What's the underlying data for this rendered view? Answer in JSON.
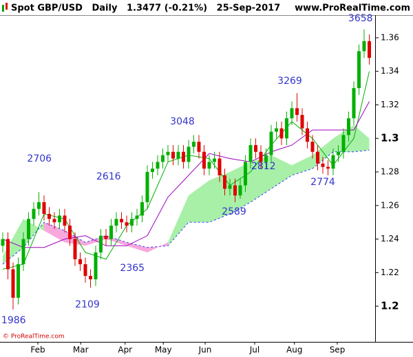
{
  "chart_data": {
    "type": "candlestick",
    "title": "Spot GBP/USD   Daily   1.3477 (-0.21%)   25-Sep-2017",
    "website": "www.ProRealTime.com",
    "copyright": "© ProRealTime.com",
    "up_color": "#00b000",
    "down_color": "#e00000",
    "xlim": [
      -0.533,
      72.133
    ],
    "ylim": [
      1.1787,
      1.3735
    ],
    "yticks": [
      1.2,
      1.22,
      1.24,
      1.26,
      1.28,
      1.3,
      1.32,
      1.34,
      1.36
    ],
    "xticks": [
      {
        "value": 6.8,
        "label": "Feb"
      },
      {
        "value": 15.1,
        "label": "Mar"
      },
      {
        "value": 23.7,
        "label": "Apr"
      },
      {
        "value": 31.1,
        "label": "May"
      },
      {
        "value": 39.2,
        "label": "Jun"
      },
      {
        "value": 48.8,
        "label": "Jul"
      },
      {
        "value": 56.5,
        "label": "Aug"
      },
      {
        "value": 64.8,
        "label": "Sep"
      }
    ],
    "grid": false,
    "candles": {
      "x": [
        0,
        1,
        2,
        3,
        4,
        5,
        6,
        7,
        8,
        9,
        10,
        11,
        12,
        13,
        14,
        15,
        16,
        17,
        18,
        19,
        20,
        21,
        22,
        23,
        24,
        25,
        26,
        27,
        28,
        29,
        30,
        31,
        32,
        33,
        34,
        35,
        36,
        37,
        38,
        39,
        40,
        41,
        42,
        43,
        44,
        45,
        46,
        47,
        48,
        49,
        50,
        51,
        52,
        53,
        54,
        55,
        56,
        57,
        58,
        59,
        60,
        61,
        62,
        63,
        64,
        65,
        66,
        67,
        68,
        69,
        70,
        71
      ],
      "open": [
        1.236,
        1.24,
        1.222,
        1.205,
        1.225,
        1.24,
        1.252,
        1.258,
        1.262,
        1.255,
        1.252,
        1.25,
        1.254,
        1.248,
        1.24,
        1.228,
        1.225,
        1.218,
        1.216,
        1.232,
        1.242,
        1.24,
        1.248,
        1.252,
        1.25,
        1.248,
        1.252,
        1.254,
        1.262,
        1.28,
        1.282,
        1.286,
        1.29,
        1.292,
        1.288,
        1.292,
        1.286,
        1.295,
        1.298,
        1.292,
        1.282,
        1.286,
        1.288,
        1.278,
        1.27,
        1.272,
        1.266,
        1.272,
        1.286,
        1.296,
        1.292,
        1.286,
        1.29,
        1.304,
        1.306,
        1.3,
        1.312,
        1.318,
        1.314,
        1.306,
        1.298,
        1.292,
        1.285,
        1.283,
        1.282,
        1.29,
        1.292,
        1.302,
        1.312,
        1.33,
        1.352,
        1.358
      ],
      "high": [
        1.244,
        1.244,
        1.226,
        1.229,
        1.244,
        1.256,
        1.262,
        1.268,
        1.266,
        1.259,
        1.256,
        1.258,
        1.258,
        1.252,
        1.244,
        1.232,
        1.229,
        1.222,
        1.236,
        1.246,
        1.246,
        1.252,
        1.256,
        1.256,
        1.254,
        1.256,
        1.258,
        1.266,
        1.284,
        1.286,
        1.29,
        1.294,
        1.296,
        1.296,
        1.296,
        1.296,
        1.299,
        1.302,
        1.302,
        1.296,
        1.29,
        1.292,
        1.292,
        1.282,
        1.276,
        1.276,
        1.276,
        1.29,
        1.3,
        1.3,
        1.296,
        1.294,
        1.308,
        1.31,
        1.31,
        1.316,
        1.322,
        1.327,
        1.318,
        1.31,
        1.302,
        1.296,
        1.289,
        1.287,
        1.294,
        1.296,
        1.306,
        1.316,
        1.334,
        1.356,
        1.365,
        1.362
      ],
      "low": [
        1.232,
        1.216,
        1.198,
        1.201,
        1.221,
        1.236,
        1.248,
        1.254,
        1.251,
        1.248,
        1.246,
        1.246,
        1.244,
        1.236,
        1.224,
        1.221,
        1.214,
        1.211,
        1.212,
        1.228,
        1.236,
        1.236,
        1.244,
        1.246,
        1.244,
        1.244,
        1.248,
        1.25,
        1.258,
        1.276,
        1.278,
        1.282,
        1.286,
        1.284,
        1.284,
        1.282,
        1.282,
        1.291,
        1.288,
        1.278,
        1.278,
        1.282,
        1.274,
        1.266,
        1.266,
        1.262,
        1.264,
        1.268,
        1.282,
        1.288,
        1.282,
        1.282,
        1.286,
        1.3,
        1.296,
        1.296,
        1.308,
        1.31,
        1.302,
        1.294,
        1.288,
        1.281,
        1.279,
        1.278,
        1.278,
        1.286,
        1.288,
        1.298,
        1.308,
        1.326,
        1.348,
        1.344
      ],
      "close": [
        1.24,
        1.222,
        1.205,
        1.225,
        1.24,
        1.252,
        1.258,
        1.262,
        1.255,
        1.252,
        1.25,
        1.254,
        1.248,
        1.24,
        1.228,
        1.225,
        1.218,
        1.216,
        1.232,
        1.242,
        1.24,
        1.248,
        1.252,
        1.25,
        1.248,
        1.252,
        1.254,
        1.262,
        1.28,
        1.282,
        1.286,
        1.29,
        1.292,
        1.288,
        1.292,
        1.286,
        1.295,
        1.298,
        1.292,
        1.282,
        1.286,
        1.288,
        1.278,
        1.27,
        1.272,
        1.266,
        1.272,
        1.286,
        1.296,
        1.292,
        1.286,
        1.29,
        1.304,
        1.306,
        1.3,
        1.312,
        1.318,
        1.314,
        1.306,
        1.298,
        1.292,
        1.285,
        1.283,
        1.282,
        1.29,
        1.292,
        1.302,
        1.312,
        1.33,
        1.352,
        1.358,
        1.348
      ]
    },
    "cloud": {
      "x": [
        0,
        4,
        8,
        12,
        16,
        20,
        24,
        28,
        32,
        36,
        40,
        44,
        48,
        52,
        56,
        60,
        64,
        68,
        71
      ],
      "span_a": [
        1.23,
        1.252,
        1.245,
        1.238,
        1.236,
        1.24,
        1.236,
        1.232,
        1.238,
        1.266,
        1.275,
        1.28,
        1.286,
        1.29,
        1.284,
        1.29,
        1.3,
        1.308,
        1.3
      ],
      "span_b": [
        1.225,
        1.235,
        1.25,
        1.245,
        1.238,
        1.242,
        1.238,
        1.235,
        1.236,
        1.25,
        1.25,
        1.255,
        1.262,
        1.27,
        1.278,
        1.282,
        1.292,
        1.292,
        1.293
      ],
      "up_color": "#a8f0a8",
      "down_color": "#f8a8dc",
      "edge_color": "#3a3aff"
    },
    "lines": {
      "x": [
        0,
        4,
        8,
        12,
        16,
        20,
        24,
        28,
        32,
        36,
        40,
        44,
        48,
        52,
        56,
        60,
        64,
        68,
        71
      ],
      "series": [
        {
          "color": "#00b000",
          "values": [
            1.222,
            1.225,
            1.255,
            1.252,
            1.232,
            1.228,
            1.248,
            1.258,
            1.286,
            1.29,
            1.288,
            1.272,
            1.28,
            1.296,
            1.31,
            1.3,
            1.284,
            1.3,
            1.34
          ]
        },
        {
          "color": "#a000c0",
          "values": [
            1.24,
            1.235,
            1.235,
            1.24,
            1.242,
            1.236,
            1.236,
            1.242,
            1.265,
            1.278,
            1.291,
            1.288,
            1.286,
            1.292,
            1.296,
            1.305,
            1.305,
            1.305,
            1.322
          ]
        }
      ]
    },
    "annotations": [
      {
        "text": "1986",
        "x": 2.1,
        "y": 1.1914
      },
      {
        "text": "2706",
        "x": 7.1,
        "y": 1.2878
      },
      {
        "text": "2109",
        "x": 16.4,
        "y": 1.2008
      },
      {
        "text": "2616",
        "x": 20.5,
        "y": 1.2771
      },
      {
        "text": "2365",
        "x": 25.1,
        "y": 1.2226
      },
      {
        "text": "3048",
        "x": 34.8,
        "y": 1.3099
      },
      {
        "text": "2589",
        "x": 44.8,
        "y": 1.2562
      },
      {
        "text": "2812",
        "x": 50.5,
        "y": 1.2833
      },
      {
        "text": "3269",
        "x": 55.6,
        "y": 1.3342
      },
      {
        "text": "2774",
        "x": 62,
        "y": 1.2738
      },
      {
        "text": "3658",
        "x": 69.3,
        "y": 1.3715
      }
    ]
  }
}
